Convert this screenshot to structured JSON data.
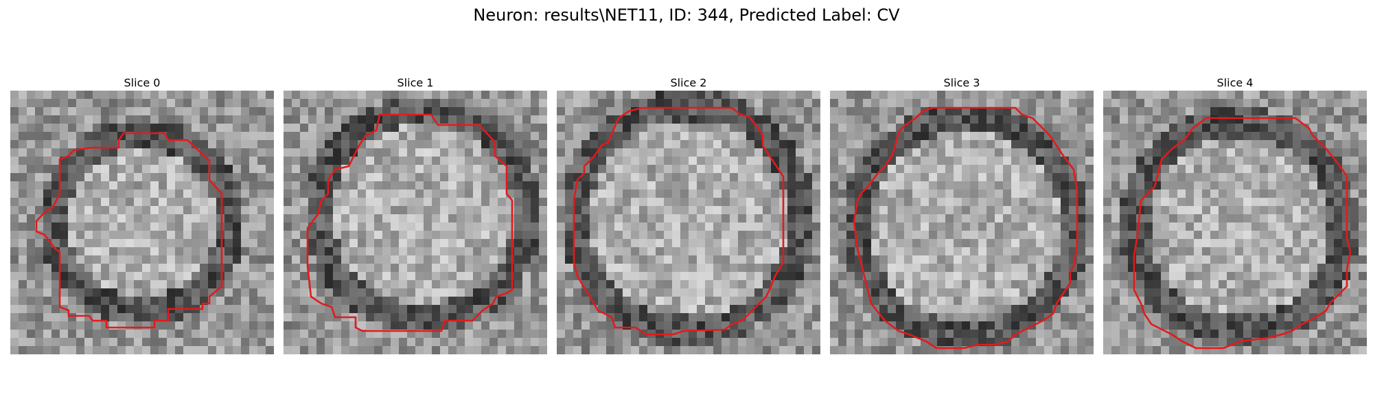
{
  "figure": {
    "title": "Neuron: results\\NET11, ID: 344, Predicted Label: CV",
    "contour_color": "#e31a1c",
    "colormap": "gray"
  },
  "slices": [
    {
      "title": "Slice 0"
    },
    {
      "title": "Slice 1"
    },
    {
      "title": "Slice 2"
    },
    {
      "title": "Slice 3"
    },
    {
      "title": "Slice 4"
    }
  ]
}
